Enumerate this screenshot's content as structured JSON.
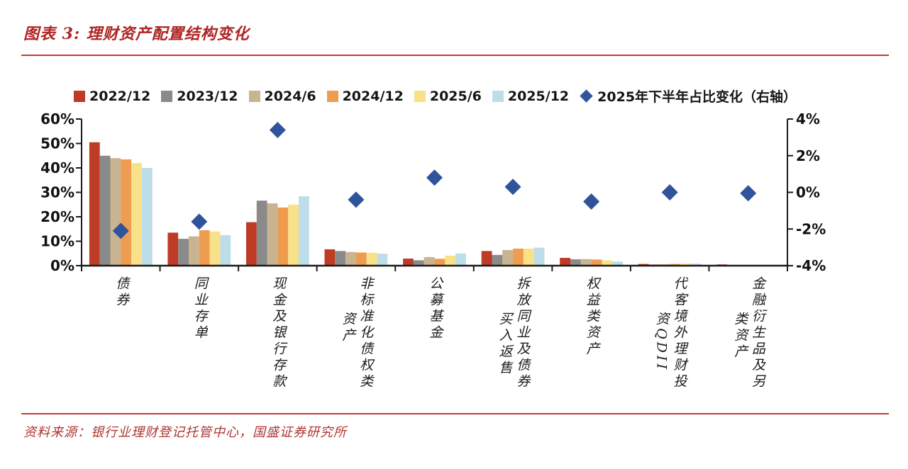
{
  "page": {
    "title": "图表 3: 理财资产配置结构变化",
    "source": "资料来源：银行业理财登记托管中心，国盛证券研究所"
  },
  "colors": {
    "title_text": "#B02425",
    "rule_red": "#C23B3B",
    "source_text": "#B03434",
    "axis_line": "#1a1a1a",
    "diamond_blue": "#30549B"
  },
  "chart_data": {
    "type": "bar",
    "title": "理财资产配置结构变化",
    "legend_position": "top",
    "grid": false,
    "categories": [
      "债券",
      "同业存单",
      "现金及银行存款",
      "非标准化债权类资产",
      "公募基金",
      "拆放同业及债券买入返售",
      "权益类资产",
      "代客境外理财投资QDII",
      "金融衍生品及另类资产"
    ],
    "category_label_columns": [
      [
        "债券"
      ],
      [
        "同业存单"
      ],
      [
        "现金及银行存款"
      ],
      [
        "非标准化债权类",
        "资产"
      ],
      [
        "公募基金"
      ],
      [
        "拆放同业及债券",
        "买入返售"
      ],
      [
        "权益类资产"
      ],
      [
        "代客境外理财投",
        "资QDII"
      ],
      [
        "金融衍生品及另",
        "类资产"
      ]
    ],
    "series": [
      {
        "name": "2022/12",
        "type": "bar",
        "color": "#BE3B26",
        "axis": "left",
        "values": [
          50.5,
          13.5,
          17.8,
          6.7,
          2.9,
          6.0,
          3.2,
          0.7,
          0.5
        ]
      },
      {
        "name": "2023/12",
        "type": "bar",
        "color": "#8A8A8A",
        "axis": "left",
        "values": [
          45.0,
          11.0,
          26.6,
          6.0,
          2.2,
          4.4,
          2.6,
          0.5,
          0.3
        ]
      },
      {
        "name": "2024/6",
        "type": "bar",
        "color": "#C8B491",
        "axis": "left",
        "values": [
          44.0,
          12.0,
          25.5,
          5.6,
          3.5,
          6.4,
          2.7,
          0.6,
          0.3
        ]
      },
      {
        "name": "2024/12",
        "type": "bar",
        "color": "#EE9C50",
        "axis": "left",
        "values": [
          43.5,
          14.5,
          23.8,
          5.4,
          2.8,
          7.0,
          2.5,
          0.7,
          0.3
        ]
      },
      {
        "name": "2025/6",
        "type": "bar",
        "color": "#F9E18A",
        "axis": "left",
        "values": [
          42.0,
          14.0,
          25.0,
          5.3,
          4.1,
          7.0,
          2.2,
          0.8,
          0.3
        ]
      },
      {
        "name": "2025/12",
        "type": "bar",
        "color": "#BDDDE9",
        "axis": "left",
        "values": [
          40.0,
          12.5,
          28.4,
          4.9,
          5.0,
          7.4,
          1.7,
          0.8,
          0.3
        ]
      },
      {
        "name": "2025年下半年占比变化（右轴）",
        "type": "scatter-diamond",
        "color": "#30549B",
        "axis": "right",
        "values": [
          -2.1,
          -1.6,
          3.4,
          -0.4,
          0.8,
          0.3,
          -0.5,
          0.0,
          -0.05
        ]
      }
    ],
    "left_axis": {
      "min": 0,
      "max": 60,
      "tick_values": [
        60,
        50,
        40,
        30,
        20,
        10,
        0
      ],
      "tick_labels": [
        "60%",
        "50%",
        "40%",
        "30%",
        "20%",
        "10%",
        "0%"
      ]
    },
    "right_axis": {
      "min": -4,
      "max": 4,
      "tick_values": [
        4,
        2,
        0,
        -2,
        -4
      ],
      "tick_labels": [
        "4%",
        "2%",
        "0%",
        "-2%",
        "-4%"
      ]
    }
  }
}
